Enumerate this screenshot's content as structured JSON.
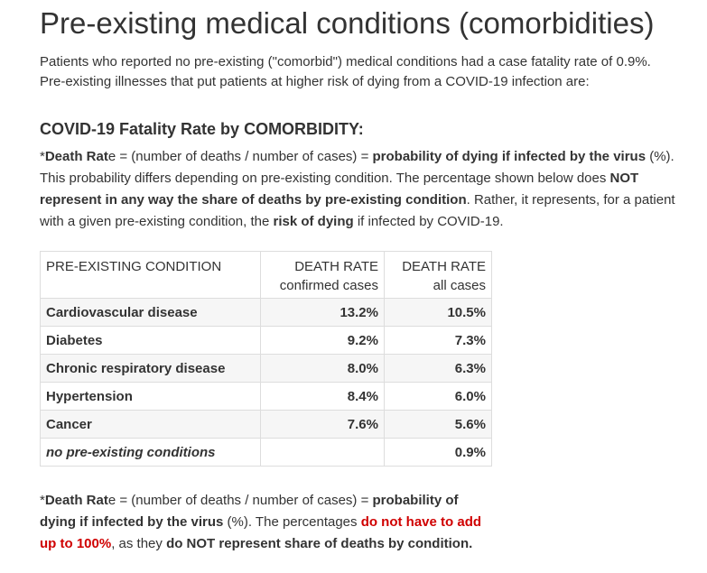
{
  "title": "Pre-existing medical conditions (comorbidities)",
  "intro": {
    "line1": "Patients who reported no pre-existing (\"comorbid\") medical conditions had a case fatality rate of 0.9%.",
    "line2": "Pre-existing illnesses that put patients at higher risk of dying from a COVID-19 infection are:"
  },
  "subtitle": "COVID-19 Fatality Rate by COMORBIDITY:",
  "note_top": {
    "asterisk": "*",
    "death_rate_bold": "Death Rat",
    "death_rate_tail": "e",
    "formula": " = (number of deaths / number of cases) = ",
    "probability_bold": "probability of dying if infected by the virus",
    "pct_suffix": " (%).",
    "s2": " This probability differs depending on pre-existing condition. The percentage shown below does ",
    "not_bold": "NOT represent in any way the share of deaths by pre-existing condition",
    "s3": ". Rather, it represents, for a patient with a given pre-existing condition, the ",
    "risk_bold": "risk of dying",
    "s4": " if infected by COVID-19."
  },
  "table": {
    "headers": {
      "condition": "PRE-EXISTING CONDITION",
      "confirmed_l1": "DEATH RATE",
      "confirmed_l2": "confirmed cases",
      "all_l1": "DEATH RATE",
      "all_l2": "all cases"
    },
    "rows": [
      {
        "condition": "Cardiovascular disease",
        "confirmed": "13.2%",
        "all": "10.5%"
      },
      {
        "condition": "Diabetes",
        "confirmed": "9.2%",
        "all": "7.3%"
      },
      {
        "condition": "Chronic respiratory disease",
        "confirmed": "8.0%",
        "all": "6.3%"
      },
      {
        "condition": "Hypertension",
        "confirmed": "8.4%",
        "all": "6.0%"
      },
      {
        "condition": "Cancer",
        "confirmed": "7.6%",
        "all": "5.6%"
      },
      {
        "condition": "no pre-existing conditions",
        "confirmed": "",
        "all": "0.9%"
      }
    ]
  },
  "note_bottom": {
    "asterisk": "*",
    "death_rate_bold": "Death Rat",
    "death_rate_tail": "e",
    "formula": " = (number of deaths / number of cases) = ",
    "probability_bold": "probability of dying if infected by the virus",
    "pct": " (%). The percentages ",
    "red_bold": "do not have to add up to 100%",
    "mid": ", as they ",
    "end_bold": "do NOT represent share of deaths by condition."
  },
  "colors": {
    "text": "#333333",
    "red": "#d00000",
    "border": "#dddddd",
    "stripe": "#f6f6f6"
  }
}
